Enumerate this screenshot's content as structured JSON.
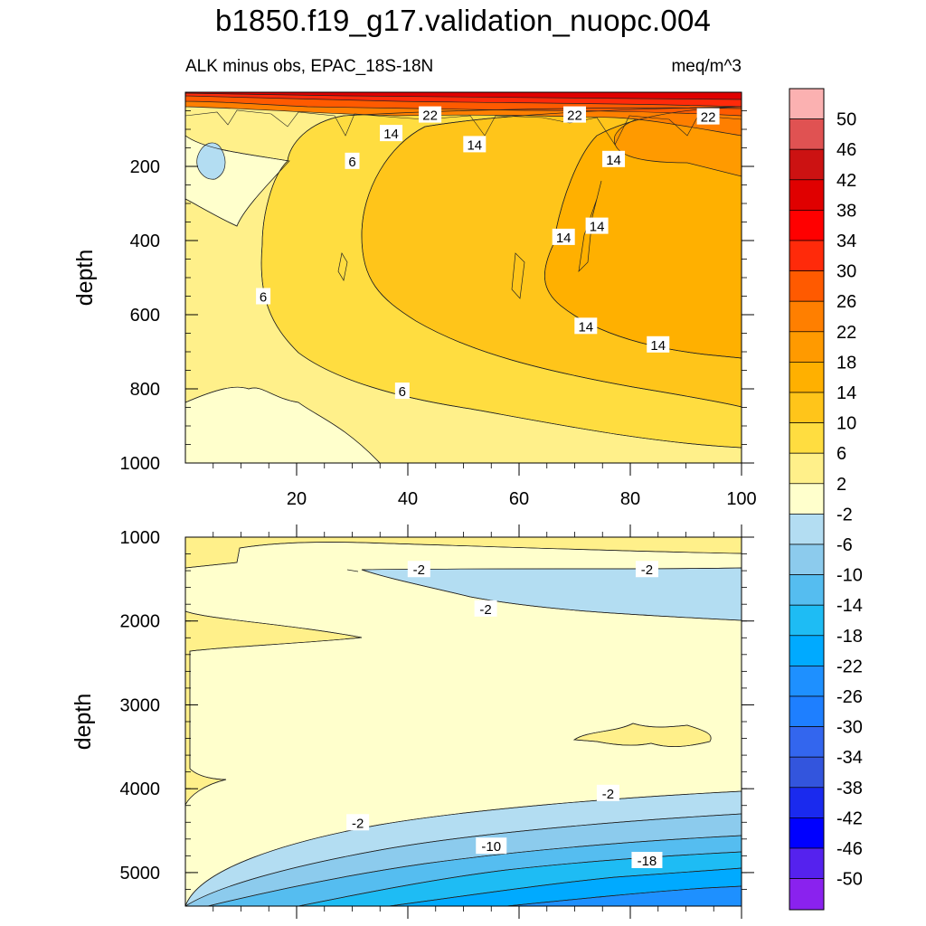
{
  "header": {
    "title": "b1850.f19_g17.validation_nuopc.004",
    "subtitle_left": "ALK minus obs, EPAC_18S-18N",
    "subtitle_right": "meq/m^3"
  },
  "colors": {
    "levels": [
      {
        "label": "50",
        "color": "#fbb1b1"
      },
      {
        "label": "46",
        "color": "#e05252"
      },
      {
        "label": "42",
        "color": "#cc1212"
      },
      {
        "label": "38",
        "color": "#e00000"
      },
      {
        "label": "34",
        "color": "#ff0000"
      },
      {
        "label": "30",
        "color": "#ff2a0a"
      },
      {
        "label": "26",
        "color": "#ff5a00"
      },
      {
        "label": "22",
        "color": "#ff7f00"
      },
      {
        "label": "18",
        "color": "#ff9a00"
      },
      {
        "label": "14",
        "color": "#ffb000"
      },
      {
        "label": "10",
        "color": "#ffc51a"
      },
      {
        "label": "6",
        "color": "#ffdd40"
      },
      {
        "label": "2",
        "color": "#fff08a"
      },
      {
        "label": "-2",
        "color": "#ffffcc"
      },
      {
        "label": "-6",
        "color": "#b3ddf2"
      },
      {
        "label": "-10",
        "color": "#8ccbed"
      },
      {
        "label": "-14",
        "color": "#55bdf0"
      },
      {
        "label": "-18",
        "color": "#1ebcf4"
      },
      {
        "label": "-22",
        "color": "#00aaff"
      },
      {
        "label": "-26",
        "color": "#1e90ff"
      },
      {
        "label": "-30",
        "color": "#1e7fff"
      },
      {
        "label": "-34",
        "color": "#3366ee"
      },
      {
        "label": "-38",
        "color": "#3355dd"
      },
      {
        "label": "-42",
        "color": "#1a2aee"
      },
      {
        "label": "-46",
        "color": "#0000ff"
      },
      {
        "label": "-50",
        "color": "#5522ee"
      }
    ],
    "bottom_swatch": "#8a22ee"
  },
  "chart_data": [
    {
      "type": "heatmap",
      "panel": "upper",
      "title": "ALK minus obs, EPAC_18S-18N",
      "units": "meq/m^3",
      "xlabel": "",
      "ylabel": "depth",
      "xlim": [
        0,
        100
      ],
      "ylim": [
        1000,
        0
      ],
      "x_ticks": [
        "20",
        "40",
        "60",
        "80",
        "100"
      ],
      "y_ticks": [
        "200",
        "400",
        "600",
        "800",
        "1000"
      ],
      "contour_labels": [
        {
          "text": "22",
          "x": 44,
          "y": 60
        },
        {
          "text": "22",
          "x": 70,
          "y": 60
        },
        {
          "text": "22",
          "x": 94,
          "y": 65
        },
        {
          "text": "14",
          "x": 37,
          "y": 110
        },
        {
          "text": "14",
          "x": 52,
          "y": 140
        },
        {
          "text": "14",
          "x": 77,
          "y": 180
        },
        {
          "text": "6",
          "x": 30,
          "y": 185
        },
        {
          "text": "14",
          "x": 68,
          "y": 390
        },
        {
          "text": "14",
          "x": 74,
          "y": 360
        },
        {
          "text": "6",
          "x": 14,
          "y": 550
        },
        {
          "text": "14",
          "x": 72,
          "y": 630
        },
        {
          "text": "14",
          "x": 85,
          "y": 680
        },
        {
          "text": "6",
          "x": 39,
          "y": 805
        }
      ]
    },
    {
      "type": "heatmap",
      "panel": "lower",
      "xlabel": "",
      "ylabel": "depth",
      "xlim": [
        0,
        100
      ],
      "ylim": [
        5400,
        1000
      ],
      "y_ticks": [
        "1000",
        "2000",
        "3000",
        "4000",
        "5000"
      ],
      "contour_labels": [
        {
          "text": "-2",
          "x": 42,
          "y": 1380
        },
        {
          "text": "-2",
          "x": 83,
          "y": 1380
        },
        {
          "text": "-2",
          "x": 54,
          "y": 1850
        },
        {
          "text": "-2",
          "x": 76,
          "y": 4050
        },
        {
          "text": "-2",
          "x": 31,
          "y": 4400
        },
        {
          "text": "-10",
          "x": 55,
          "y": 4680
        },
        {
          "text": "-18",
          "x": 83,
          "y": 4850
        }
      ]
    }
  ]
}
